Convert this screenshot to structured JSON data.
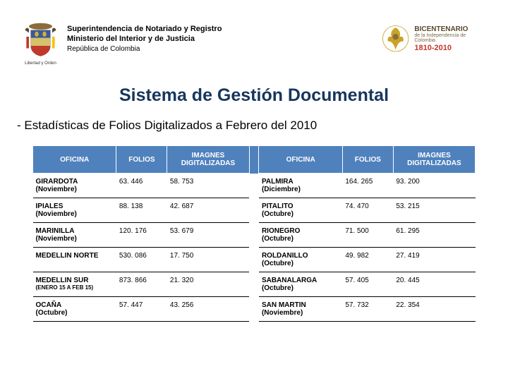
{
  "header": {
    "shield_caption": "Libertad y Orden",
    "line1": "Superintendencia de Notariado y Registro",
    "line2": "Ministerio del Interior y de Justicia",
    "line3": "República de Colombia",
    "bicentenario_big": "BICENTENARIO",
    "bicentenario_sub": "de la Independencia de Colombia",
    "bicentenario_years": "1810-2010"
  },
  "title": "Sistema de Gestión Documental",
  "subtitle": "- Estadísticas de Folios Digitalizados a Febrero del 2010",
  "table": {
    "headers": {
      "oficina": "OFICINA",
      "folios": "FOLIOS",
      "imagenes": "IMAGNES DIGITALIZADAS"
    },
    "rows": [
      {
        "l_off": "GIRARDOTA",
        "l_par": "(Noviembre)",
        "l_fol": "63. 446",
        "l_img": "58. 753",
        "r_off": "PALMIRA",
        "r_par": "(Diciembre)",
        "r_fol": "164. 265",
        "r_img": "93. 200"
      },
      {
        "l_off": "IPIALES",
        "l_par": "(Noviembre)",
        "l_fol": "88. 138",
        "l_img": "42. 687",
        "r_off": "PITALITO",
        "r_par": "(Octubre)",
        "r_fol": "74. 470",
        "r_img": "53. 215"
      },
      {
        "l_off": "MARINILLA",
        "l_par": "(Noviembre)",
        "l_fol": "120. 176",
        "l_img": "53. 679",
        "r_off": "RIONEGRO",
        "r_par": "(Octubre)",
        "r_fol": "71. 500",
        "r_img": "61. 295"
      },
      {
        "l_off": "MEDELLIN NORTE",
        "l_par": "",
        "l_fol": "530. 086",
        "l_img": "17. 750",
        "r_off": "ROLDANILLO",
        "r_par": "(Octubre)",
        "r_fol": "49. 982",
        "r_img": "27. 419"
      },
      {
        "l_off": "MEDELLIN SUR",
        "l_par": "(ENERO 15 A FEB 15)",
        "l_small": true,
        "l_fol": "873. 866",
        "l_img": "21. 320",
        "r_off": "SABANALARGA",
        "r_par": "(Octubre)",
        "r_fol": "57. 405",
        "r_img": "20. 445"
      },
      {
        "l_off": "OCAÑA",
        "l_par": "(Octubre)",
        "l_fol": "57. 447",
        "l_img": "43. 256",
        "r_off": "SAN MARTIN",
        "r_par": "(Noviembre)",
        "r_fol": "57. 732",
        "r_img": "22. 354"
      }
    ]
  },
  "colors": {
    "title": "#17365d",
    "th_bg": "#4f81bd",
    "th_fg": "#ffffff",
    "border": "#000000"
  }
}
